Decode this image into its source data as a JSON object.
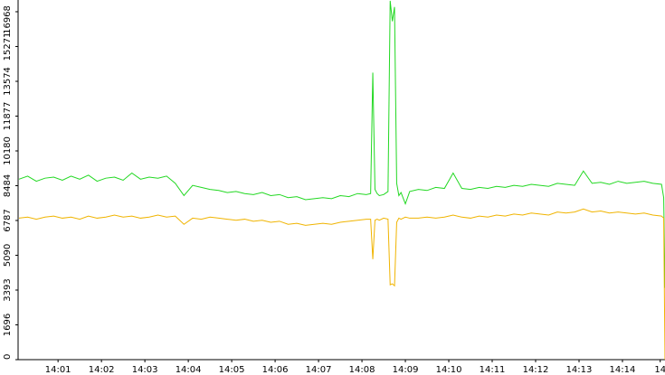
{
  "chart_data": {
    "type": "line",
    "x": [
      0.1,
      0.3,
      0.5,
      0.7,
      0.9,
      1.1,
      1.3,
      1.5,
      1.7,
      1.9,
      2.1,
      2.3,
      2.5,
      2.7,
      2.9,
      3.1,
      3.3,
      3.5,
      3.7,
      3.9,
      4.1,
      4.3,
      4.5,
      4.7,
      4.9,
      5.1,
      5.3,
      5.5,
      5.7,
      5.9,
      6.1,
      6.3,
      6.5,
      6.7,
      6.9,
      7.1,
      7.3,
      7.5,
      7.7,
      7.9,
      8.1,
      8.2,
      8.25,
      8.3,
      8.35,
      8.4,
      8.5,
      8.6,
      8.65,
      8.7,
      8.75,
      8.8,
      8.85,
      8.9,
      9.0,
      9.1,
      9.3,
      9.5,
      9.7,
      9.9,
      10.1,
      10.3,
      10.5,
      10.7,
      10.9,
      11.1,
      11.3,
      11.5,
      11.7,
      11.9,
      12.1,
      12.3,
      12.5,
      12.7,
      12.9,
      13.1,
      13.3,
      13.5,
      13.7,
      13.9,
      14.1,
      14.3,
      14.5,
      14.7,
      14.9,
      14.95,
      14.98
    ],
    "series": [
      {
        "color": "#22d822",
        "values": [
          8800,
          8950,
          8700,
          8850,
          8900,
          8750,
          8950,
          8800,
          9000,
          8700,
          8850,
          8900,
          8750,
          9100,
          8800,
          8900,
          8850,
          8950,
          8600,
          8000,
          8500,
          8400,
          8300,
          8250,
          8150,
          8200,
          8100,
          8050,
          8150,
          8000,
          8050,
          7900,
          7950,
          7800,
          7850,
          7900,
          7850,
          8000,
          7950,
          8100,
          8050,
          8100,
          14000,
          8300,
          8100,
          8000,
          8050,
          8200,
          17500,
          16500,
          17200,
          8600,
          8000,
          8150,
          7600,
          8200,
          8300,
          8250,
          8400,
          8350,
          9100,
          8350,
          8300,
          8400,
          8350,
          8450,
          8400,
          8500,
          8450,
          8550,
          8500,
          8450,
          8600,
          8550,
          8500,
          9200,
          8600,
          8650,
          8550,
          8700,
          8600,
          8650,
          8700,
          8600,
          8550,
          7900,
          3500
        ]
      },
      {
        "color": "#f0b400",
        "values": [
          6900,
          6950,
          6850,
          6950,
          7000,
          6900,
          6950,
          6850,
          7000,
          6900,
          6950,
          7050,
          6950,
          7000,
          6900,
          6950,
          7050,
          6950,
          7000,
          6600,
          6900,
          6850,
          6950,
          6900,
          6850,
          6800,
          6850,
          6750,
          6800,
          6700,
          6750,
          6600,
          6650,
          6550,
          6600,
          6650,
          6600,
          6700,
          6750,
          6800,
          6850,
          6850,
          4900,
          6800,
          6850,
          6800,
          6900,
          6850,
          3650,
          3700,
          3600,
          6700,
          6900,
          6850,
          6950,
          6900,
          6900,
          6950,
          6900,
          6950,
          7050,
          6950,
          6900,
          7000,
          6950,
          7050,
          7000,
          7100,
          7050,
          7150,
          7100,
          7050,
          7200,
          7150,
          7200,
          7350,
          7200,
          7250,
          7150,
          7200,
          7150,
          7100,
          7150,
          7050,
          7000,
          6900,
          0
        ]
      }
    ],
    "xlim": [
      0.08,
      14.98
    ],
    "xticks": [
      {
        "value": 1,
        "label": "14:01"
      },
      {
        "value": 2,
        "label": "14:02"
      },
      {
        "value": 3,
        "label": "14:03"
      },
      {
        "value": 4,
        "label": "14:04"
      },
      {
        "value": 5,
        "label": "14:05"
      },
      {
        "value": 6,
        "label": "14:06"
      },
      {
        "value": 7,
        "label": "14:07"
      },
      {
        "value": 8,
        "label": "14:08"
      },
      {
        "value": 9,
        "label": "14:09"
      },
      {
        "value": 10,
        "label": "14:10"
      },
      {
        "value": 11,
        "label": "14:11"
      },
      {
        "value": 12,
        "label": "14:12"
      },
      {
        "value": 13,
        "label": "14:13"
      },
      {
        "value": 14,
        "label": "14:14"
      },
      {
        "value": 14.87,
        "label": "14"
      }
    ],
    "ylim": [
      0,
      17540
    ],
    "yticks": [
      0,
      1696,
      3393,
      5090,
      6787,
      8484,
      10180,
      11877,
      13574,
      15271,
      16968
    ]
  }
}
